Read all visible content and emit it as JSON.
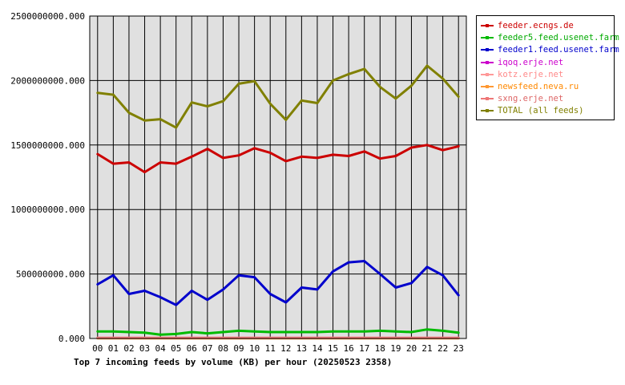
{
  "chart_data": {
    "type": "line",
    "title": "",
    "caption": "Top 7 incoming feeds by volume (KB) per hour (20250523 2358)",
    "xlabel": "",
    "ylabel": "",
    "categories": [
      "00",
      "01",
      "02",
      "03",
      "04",
      "05",
      "06",
      "07",
      "08",
      "09",
      "10",
      "11",
      "12",
      "13",
      "14",
      "15",
      "16",
      "17",
      "18",
      "19",
      "20",
      "21",
      "22",
      "23"
    ],
    "ylim": [
      0,
      2500000000
    ],
    "yticks": [
      "0.000",
      "500000000.000",
      "1000000000.000",
      "1500000000.000",
      "2000000000.000",
      "2500000000.000"
    ],
    "grid": true,
    "legend_position": "right",
    "series": [
      {
        "name": "feeder.ecngs.de",
        "color": "#cc0000",
        "text_color": "#cc0000",
        "values": [
          1430000000,
          1355000000,
          1365000000,
          1290000000,
          1365000000,
          1355000000,
          1410000000,
          1470000000,
          1400000000,
          1420000000,
          1475000000,
          1440000000,
          1375000000,
          1410000000,
          1400000000,
          1425000000,
          1415000000,
          1450000000,
          1395000000,
          1415000000,
          1480000000,
          1500000000,
          1460000000,
          1490000000
        ]
      },
      {
        "name": "feeder5.feed.usenet.farm",
        "color": "#00bb00",
        "text_color": "#00aa00",
        "values": [
          55000000,
          55000000,
          50000000,
          45000000,
          30000000,
          35000000,
          50000000,
          40000000,
          50000000,
          60000000,
          55000000,
          50000000,
          50000000,
          50000000,
          50000000,
          55000000,
          55000000,
          55000000,
          60000000,
          55000000,
          50000000,
          70000000,
          60000000,
          45000000
        ]
      },
      {
        "name": "feeder1.feed.usenet.farm",
        "color": "#0000cc",
        "text_color": "#0000cc",
        "values": [
          420000000,
          490000000,
          345000000,
          370000000,
          320000000,
          260000000,
          370000000,
          300000000,
          380000000,
          490000000,
          475000000,
          345000000,
          280000000,
          395000000,
          380000000,
          520000000,
          590000000,
          600000000,
          500000000,
          395000000,
          430000000,
          555000000,
          490000000,
          335000000
        ]
      },
      {
        "name": "iqoq.erje.net",
        "color": "#cc00cc",
        "text_color": "#cc00cc",
        "values": [
          3000000,
          3000000,
          3000000,
          3000000,
          3000000,
          3000000,
          3000000,
          3000000,
          3000000,
          3000000,
          3000000,
          3000000,
          3000000,
          3000000,
          3000000,
          3000000,
          3000000,
          3000000,
          3000000,
          3000000,
          3000000,
          3000000,
          3000000,
          3000000
        ]
      },
      {
        "name": "kotz.erje.net",
        "color": "#ff9999",
        "text_color": "#ff8888",
        "values": [
          4000000,
          4000000,
          4000000,
          4000000,
          4000000,
          4000000,
          4000000,
          4000000,
          4000000,
          4000000,
          4000000,
          4000000,
          4000000,
          4000000,
          4000000,
          4000000,
          4000000,
          4000000,
          4000000,
          4000000,
          4000000,
          4000000,
          4000000,
          4000000
        ]
      },
      {
        "name": "newsfeed.neva.ru",
        "color": "#ff9933",
        "text_color": "#ff8800",
        "values": [
          2000000,
          2000000,
          2000000,
          2000000,
          2000000,
          2000000,
          2000000,
          2000000,
          2000000,
          2000000,
          2000000,
          2000000,
          2000000,
          2000000,
          2000000,
          2000000,
          2000000,
          2000000,
          2000000,
          2000000,
          2000000,
          2000000,
          2000000,
          2000000
        ]
      },
      {
        "name": "sxng.erje.net",
        "color": "#ee7777",
        "text_color": "#dd6666",
        "values": [
          5000000,
          5000000,
          5000000,
          5000000,
          5000000,
          5000000,
          5000000,
          5000000,
          5000000,
          5000000,
          5000000,
          5000000,
          5000000,
          5000000,
          5000000,
          5000000,
          5000000,
          5000000,
          5000000,
          5000000,
          5000000,
          5000000,
          5000000,
          5000000
        ]
      },
      {
        "name": "TOTAL (all feeds)",
        "color": "#808000",
        "text_color": "#808000",
        "values": [
          1905000000,
          1890000000,
          1750000000,
          1690000000,
          1700000000,
          1635000000,
          1830000000,
          1800000000,
          1840000000,
          1975000000,
          1995000000,
          1820000000,
          1695000000,
          1845000000,
          1825000000,
          2000000000,
          2050000000,
          2090000000,
          1950000000,
          1860000000,
          1960000000,
          2115000000,
          2015000000,
          1875000000
        ]
      }
    ]
  }
}
